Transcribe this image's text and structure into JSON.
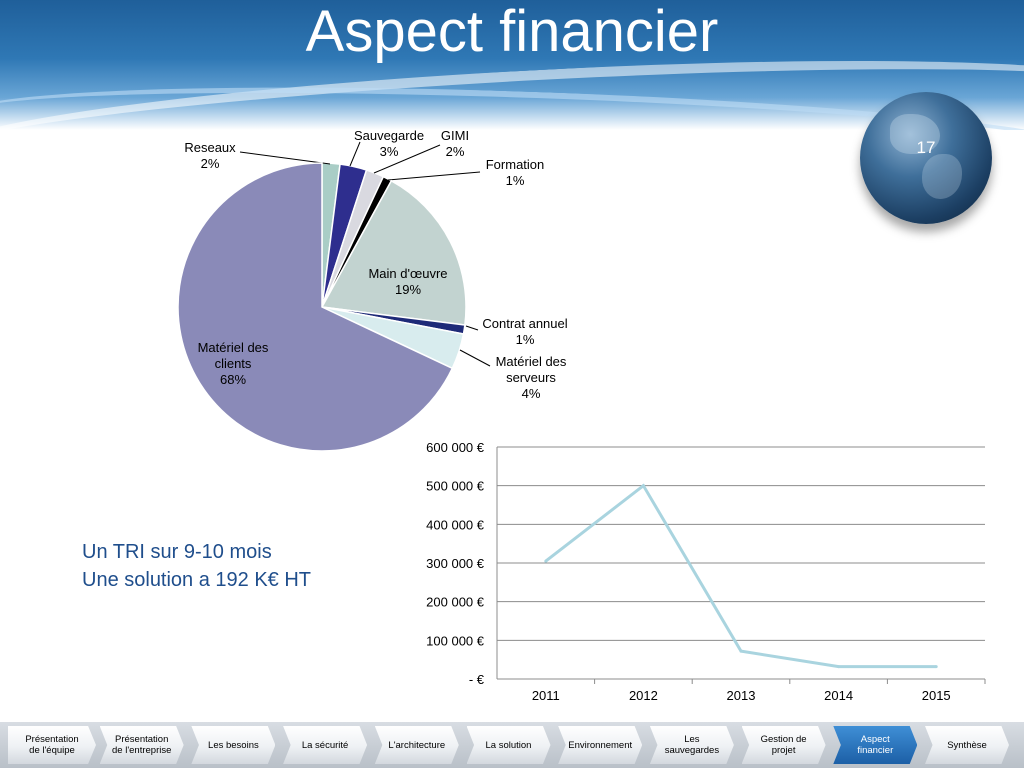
{
  "title": "Aspect financier",
  "page_number": "17",
  "text_block": [
    "Un TRI sur 9-10 mois",
    "Une solution a 192 K€ HT"
  ],
  "nav": [
    {
      "label": "Présentation de l'équipe",
      "active": false
    },
    {
      "label": "Présentation de l'entreprise",
      "active": false
    },
    {
      "label": "Les besoins",
      "active": false
    },
    {
      "label": "La sécurité",
      "active": false
    },
    {
      "label": "L'architecture",
      "active": false
    },
    {
      "label": "La solution",
      "active": false
    },
    {
      "label": "Environnement",
      "active": false
    },
    {
      "label": "Les sauvegardes",
      "active": false
    },
    {
      "label": "Gestion de projet",
      "active": false
    },
    {
      "label": "Aspect financier",
      "active": true
    },
    {
      "label": "Synthèse",
      "active": false
    }
  ],
  "chart_data": [
    {
      "type": "pie",
      "slices": [
        {
          "label": "Reseaux",
          "value": 2,
          "display": "2%",
          "color": "#a9cdc6"
        },
        {
          "label": "Sauvegarde",
          "value": 3,
          "display": "3%",
          "color": "#2e2e8e"
        },
        {
          "label": "GIMI",
          "value": 2,
          "display": "2%",
          "color": "#d9d9e0"
        },
        {
          "label": "Formation",
          "value": 1,
          "display": "1%",
          "color": "#000000"
        },
        {
          "label": "Main d'œuvre",
          "value": 19,
          "display": "19%",
          "color": "#c2d3d0"
        },
        {
          "label": "Contrat annuel",
          "value": 1,
          "display": "1%",
          "color": "#1e2a78"
        },
        {
          "label": "Matériel des serveurs",
          "value": 4,
          "display": "4%",
          "color": "#d8ecee"
        },
        {
          "label": "Matériel des clients",
          "value": 68,
          "display": "68%",
          "color": "#8a8ab8"
        }
      ]
    },
    {
      "type": "line",
      "categories": [
        "2011",
        "2012",
        "2013",
        "2014",
        "2015"
      ],
      "series": [
        {
          "values": [
            305000,
            500000,
            72000,
            32000,
            32000
          ],
          "color": "#a9d4df"
        }
      ],
      "ylim": [
        0,
        600000
      ],
      "yticks": [
        {
          "value": 0,
          "label": "-   €"
        },
        {
          "value": 100000,
          "label": "100 000 €"
        },
        {
          "value": 200000,
          "label": "200 000 €"
        },
        {
          "value": 300000,
          "label": "300 000 €"
        },
        {
          "value": 400000,
          "label": "400 000 €"
        },
        {
          "value": 500000,
          "label": "500 000 €"
        },
        {
          "value": 600000,
          "label": "600 000 €"
        }
      ],
      "grid": true,
      "legend": "none"
    }
  ]
}
